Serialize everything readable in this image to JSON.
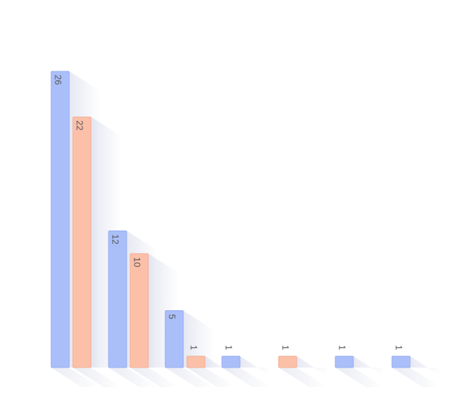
{
  "chart_data": {
    "type": "bar",
    "title": "",
    "xlabel": "",
    "ylabel": "",
    "ylim": [
      0,
      26
    ],
    "grid": false,
    "legend": "none",
    "categories": [
      "",
      "",
      "",
      "",
      "",
      "",
      ""
    ],
    "series": [
      {
        "values": [
          26,
          12,
          5,
          1,
          null,
          1,
          1
        ]
      },
      {
        "values": [
          22,
          10,
          1,
          null,
          1,
          null,
          null
        ]
      }
    ],
    "colors": {
      "series_fill": [
        "#aabff9",
        "#fcc0a9"
      ],
      "series_stroke": [
        "#8ea6ef",
        "#efa88c"
      ],
      "shadow": "#c9cde3",
      "label": "#555555"
    }
  }
}
